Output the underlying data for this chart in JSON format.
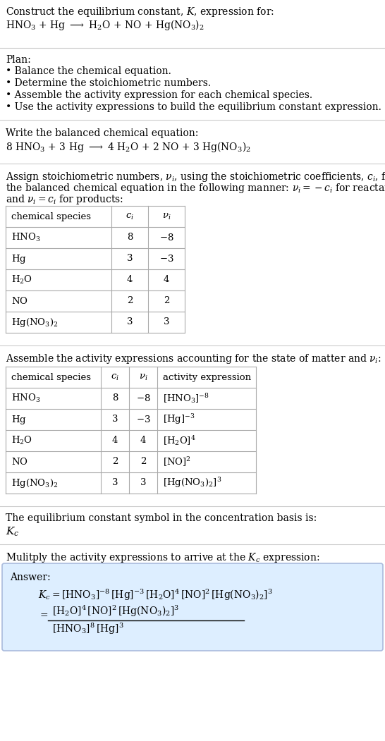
{
  "title_line1": "Construct the equilibrium constant, $K$, expression for:",
  "title_line2_plain": "HNO",
  "plan_header": "Plan:",
  "plan_items": [
    "Balance the chemical equation.",
    "Determine the stoichiometric numbers.",
    "Assemble the activity expression for each chemical species.",
    "Use the activity expressions to build the equilibrium constant expression."
  ],
  "balanced_header": "Write the balanced chemical equation:",
  "stoich_para": "Assign stoichiometric numbers, $\\nu_i$, using the stoichiometric coefficients, $c_i$, from the balanced chemical equation in the following manner: $\\nu_i = -c_i$ for reactants and $\\nu_i = c_i$ for products:",
  "table1_headers": [
    "chemical species",
    "$c_i$",
    "$\\nu_i$"
  ],
  "table1_rows": [
    [
      "$\\mathrm{HNO_3}$",
      "8",
      "$-8$"
    ],
    [
      "$\\mathrm{Hg}$",
      "3",
      "$-3$"
    ],
    [
      "$\\mathrm{H_2O}$",
      "4",
      "4"
    ],
    [
      "$\\mathrm{NO}$",
      "2",
      "2"
    ],
    [
      "$\\mathrm{Hg(NO_3)_2}$",
      "3",
      "3"
    ]
  ],
  "activity_header": "Assemble the activity expressions accounting for the state of matter and $\\nu_i$:",
  "table2_headers": [
    "chemical species",
    "$c_i$",
    "$\\nu_i$",
    "activity expression"
  ],
  "table2_rows": [
    [
      "$\\mathrm{HNO_3}$",
      "8",
      "$-8$",
      "$[\\mathrm{HNO_3}]^{-8}$"
    ],
    [
      "$\\mathrm{Hg}$",
      "3",
      "$-3$",
      "$[\\mathrm{Hg}]^{-3}$"
    ],
    [
      "$\\mathrm{H_2O}$",
      "4",
      "4",
      "$[\\mathrm{H_2O}]^{4}$"
    ],
    [
      "$\\mathrm{NO}$",
      "2",
      "2",
      "$[\\mathrm{NO}]^{2}$"
    ],
    [
      "$\\mathrm{Hg(NO_3)_2}$",
      "3",
      "3",
      "$[\\mathrm{Hg(NO_3)_2}]^{3}$"
    ]
  ],
  "kc_header": "The equilibrium constant symbol in the concentration basis is:",
  "kc_symbol": "$K_c$",
  "multiply_header": "Mulitply the activity expressions to arrive at the $K_c$ expression:",
  "answer_label": "Answer:",
  "answer_line1": "$K_c = [\\mathrm{HNO_3}]^{-8}\\,[\\mathrm{Hg}]^{-3}\\,[\\mathrm{H_2O}]^{4}\\,[\\mathrm{NO}]^{2}\\,[\\mathrm{Hg(NO_3)_2}]^{3}$",
  "answer_eq_sign": "$=$",
  "answer_numerator": "$[\\mathrm{H_2O}]^{4}\\,[\\mathrm{NO}]^{2}\\,[\\mathrm{Hg(NO_3)_2}]^{3}$",
  "answer_denominator": "$[\\mathrm{HNO_3}]^{8}\\,[\\mathrm{Hg}]^{3}$",
  "bg_color": "#ffffff",
  "answer_bg": "#ddeeff",
  "answer_border": "#aabbdd",
  "sep_color": "#cccccc",
  "table_line_color": "#aaaaaa",
  "text_color": "#000000"
}
